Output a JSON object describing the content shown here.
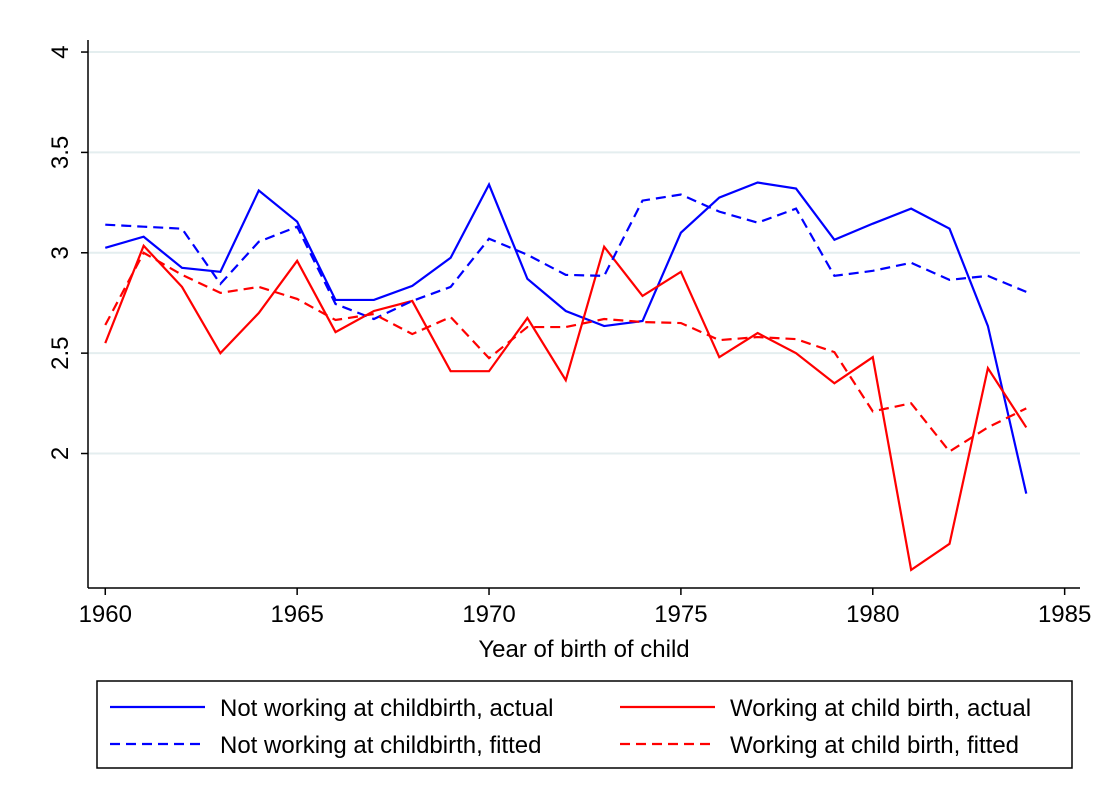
{
  "chart_data": {
    "type": "line",
    "x_label": "Year of birth of child",
    "x": [
      1960,
      1961,
      1962,
      1963,
      1964,
      1965,
      1966,
      1967,
      1968,
      1969,
      1970,
      1971,
      1972,
      1973,
      1974,
      1975,
      1976,
      1977,
      1978,
      1979,
      1980,
      1981,
      1982,
      1983,
      1984
    ],
    "xlim": [
      1959.55,
      1985.4
    ],
    "xticks": [
      1960,
      1965,
      1970,
      1975,
      1980,
      1985
    ],
    "ylim": [
      1.33,
      4.06
    ],
    "yticks": [
      2,
      2.5,
      3,
      3.5,
      4
    ],
    "grid": true,
    "legend": "bottom",
    "series": [
      {
        "name": "Not working at childbirth, actual",
        "color": "#0000ff",
        "dash": "solid",
        "values": [
          3.025,
          3.08,
          2.925,
          2.905,
          3.31,
          3.155,
          2.765,
          2.765,
          2.835,
          2.975,
          3.34,
          2.87,
          2.71,
          2.635,
          2.66,
          3.1,
          3.275,
          3.35,
          3.32,
          3.065,
          3.145,
          3.22,
          3.12,
          2.635,
          1.8
        ]
      },
      {
        "name": "Working at child birth, actual",
        "color": "#ff0000",
        "dash": "solid",
        "values": [
          2.55,
          3.035,
          2.83,
          2.5,
          2.7,
          2.96,
          2.605,
          2.71,
          2.76,
          2.41,
          2.41,
          2.675,
          2.365,
          3.03,
          2.785,
          2.905,
          2.48,
          2.6,
          2.5,
          2.35,
          2.48,
          1.42,
          1.55,
          2.425,
          2.13
        ]
      },
      {
        "name": "Not working at childbirth, fitted",
        "color": "#0000ff",
        "dash": "dashed",
        "values": [
          3.14,
          3.13,
          3.12,
          2.845,
          3.055,
          3.13,
          2.745,
          2.67,
          2.76,
          2.83,
          3.07,
          2.99,
          2.89,
          2.885,
          3.26,
          3.29,
          3.205,
          3.15,
          3.22,
          2.885,
          2.91,
          2.95,
          2.865,
          2.885,
          2.805
        ]
      },
      {
        "name": "Working at child birth, fitted",
        "color": "#ff0000",
        "dash": "dashed",
        "values": [
          2.64,
          3.0,
          2.89,
          2.8,
          2.83,
          2.77,
          2.665,
          2.695,
          2.595,
          2.68,
          2.475,
          2.63,
          2.63,
          2.67,
          2.655,
          2.65,
          2.565,
          2.58,
          2.57,
          2.505,
          2.21,
          2.25,
          2.01,
          2.13,
          2.225
        ]
      }
    ]
  }
}
